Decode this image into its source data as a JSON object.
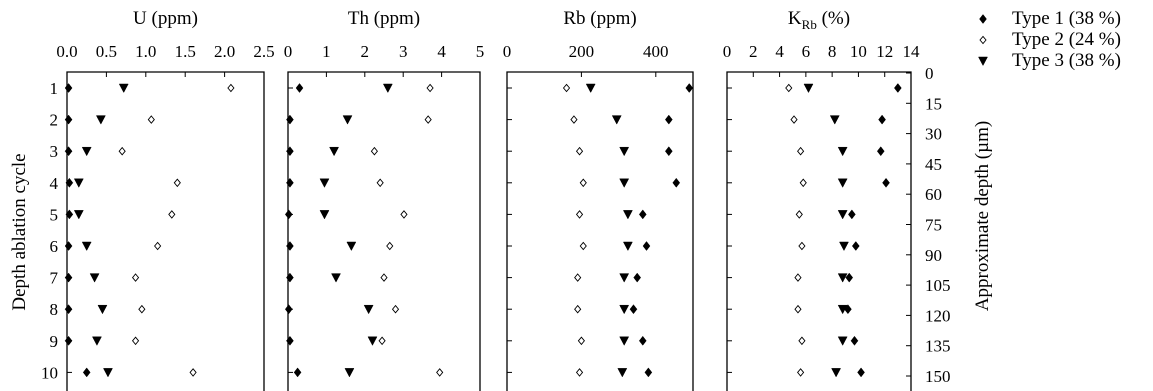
{
  "chart_data": {
    "type": "scatter",
    "y_axis_left": {
      "label": "Depth ablation cycle",
      "ticks": [
        "1",
        "2",
        "3",
        "4",
        "5",
        "6",
        "7",
        "8",
        "9",
        "10"
      ]
    },
    "y_axis_right": {
      "label": "Approximate depth (µm)",
      "ticks": [
        "0",
        "15",
        "30",
        "45",
        "60",
        "75",
        "90",
        "105",
        "120",
        "135",
        "150"
      ]
    },
    "legend_position": "top-right",
    "series": [
      {
        "key": "t1",
        "name": "Type 1 (38 %)",
        "marker": "filled-diamond",
        "color": "#000000"
      },
      {
        "key": "t2",
        "name": "Type 2 (24 %)",
        "marker": "open-diamond",
        "color": "#000000"
      },
      {
        "key": "t3",
        "name": "Type 3 (38 %)",
        "marker": "filled-triangle-down",
        "color": "#000000"
      }
    ],
    "panels": [
      {
        "title": "U (ppm)",
        "xlim": [
          0,
          2.5
        ],
        "xticks": [
          "0.0",
          "0.5",
          "1.0",
          "1.5",
          "2.0",
          "2.5"
        ],
        "cycles": [
          1,
          2,
          3,
          4,
          5,
          6,
          7,
          8,
          9,
          10
        ],
        "t1": [
          0.02,
          0.02,
          0.02,
          0.03,
          0.03,
          0.02,
          0.02,
          0.02,
          0.02,
          0.25
        ],
        "t2": [
          2.08,
          1.07,
          0.7,
          1.4,
          1.33,
          1.15,
          0.87,
          0.95,
          0.87,
          1.6
        ],
        "t3": [
          0.72,
          0.43,
          0.25,
          0.15,
          0.15,
          0.25,
          0.35,
          0.45,
          0.38,
          0.52
        ]
      },
      {
        "title": "Th (ppm)",
        "xlim": [
          0,
          5
        ],
        "xticks": [
          "0",
          "1",
          "2",
          "3",
          "4",
          "5"
        ],
        "cycles": [
          1,
          2,
          3,
          4,
          5,
          6,
          7,
          8,
          9,
          10
        ],
        "t1": [
          0.3,
          0.05,
          0.05,
          0.05,
          0.02,
          0.05,
          0.05,
          0.02,
          0.05,
          0.25
        ],
        "t2": [
          3.7,
          3.65,
          2.25,
          2.4,
          3.02,
          2.65,
          2.5,
          2.8,
          2.45,
          3.95
        ],
        "t3": [
          2.6,
          1.55,
          1.2,
          0.95,
          0.95,
          1.65,
          1.25,
          2.1,
          2.2,
          1.6
        ]
      },
      {
        "title": "Rb (ppm)",
        "xlim": [
          0,
          500
        ],
        "xticks": [
          "0",
          "200",
          "400"
        ],
        "cycles": [
          1,
          2,
          3,
          4,
          5,
          6,
          7,
          8,
          9,
          10
        ],
        "t1": [
          490,
          435,
          435,
          455,
          365,
          375,
          350,
          340,
          365,
          380
        ],
        "t2": [
          160,
          180,
          195,
          205,
          195,
          205,
          190,
          190,
          200,
          195
        ],
        "t3": [
          225,
          295,
          315,
          315,
          325,
          325,
          315,
          315,
          315,
          310
        ]
      },
      {
        "title": "K",
        "title_sub": "Rb",
        "title_suffix": " (%)",
        "xlim": [
          0,
          14
        ],
        "xticks": [
          "0",
          "2",
          "4",
          "6",
          "8",
          "10",
          "12",
          "14"
        ],
        "cycles": [
          1,
          2,
          3,
          4,
          5,
          6,
          7,
          8,
          9,
          10
        ],
        "t1": [
          13,
          11.8,
          11.7,
          12.1,
          9.5,
          9.8,
          9.3,
          9.2,
          9.7,
          10.2
        ],
        "t2": [
          4.7,
          5.1,
          5.6,
          5.8,
          5.5,
          5.7,
          5.4,
          5.4,
          5.7,
          5.6
        ],
        "t3": [
          6.2,
          8.2,
          8.8,
          8.8,
          8.8,
          8.9,
          8.8,
          8.8,
          8.8,
          8.3
        ]
      }
    ]
  }
}
